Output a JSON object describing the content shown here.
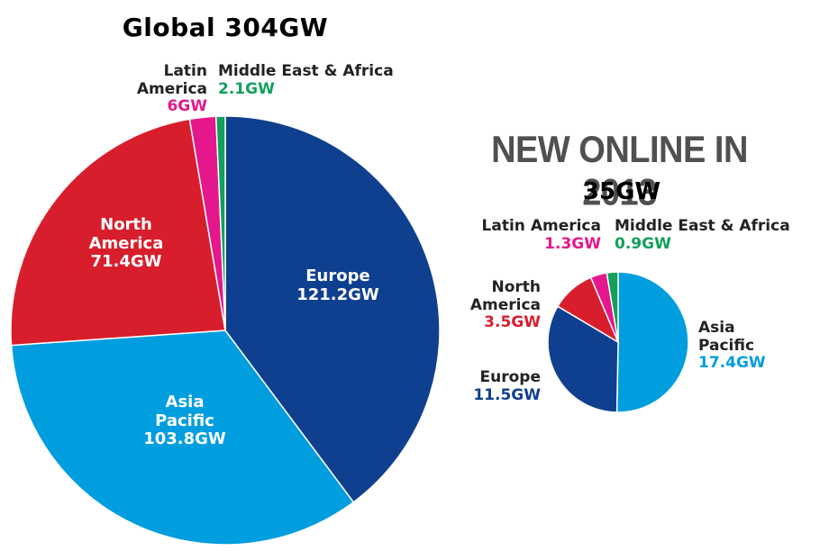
{
  "chart_data": [
    {
      "type": "pie",
      "title": "Global 304GW",
      "slices": [
        {
          "name": "Europe",
          "value": 121.2,
          "label": "121.2GW",
          "color": "#0f3f8f"
        },
        {
          "name": "Asia Pacific",
          "value": 103.8,
          "label": "103.8GW",
          "color": "#009ddf"
        },
        {
          "name": "North America",
          "value": 71.4,
          "label": "71.4GW",
          "color": "#d81e2c"
        },
        {
          "name": "Latin America",
          "value": 6,
          "label": "6GW",
          "color": "#e5178c"
        },
        {
          "name": "Middle East & Africa",
          "value": 2.1,
          "label": "2.1GW",
          "color": "#12a05c"
        }
      ]
    },
    {
      "type": "pie",
      "title": "NEW ONLINE IN 2013",
      "subtitle": "35GW",
      "slices": [
        {
          "name": "Asia Pacific",
          "value": 17.4,
          "label": "17.4GW",
          "color": "#009ddf"
        },
        {
          "name": "Europe",
          "value": 11.5,
          "label": "11.5GW",
          "color": "#0f3f8f"
        },
        {
          "name": "North America",
          "value": 3.5,
          "label": "3.5GW",
          "color": "#d81e2c"
        },
        {
          "name": "Latin America",
          "value": 1.3,
          "label": "1.3GW",
          "color": "#e5178c"
        },
        {
          "name": "Middle East & Africa",
          "value": 0.9,
          "label": "0.9GW",
          "color": "#12a05c"
        }
      ]
    }
  ],
  "labels": {
    "europe_name": "Europe",
    "asia_name_1": "Asia",
    "asia_name_2": "Pacific",
    "north_name_1": "North",
    "north_name_2": "America",
    "latin_name": "Latin America",
    "mea_name": "Middle East & Africa"
  }
}
